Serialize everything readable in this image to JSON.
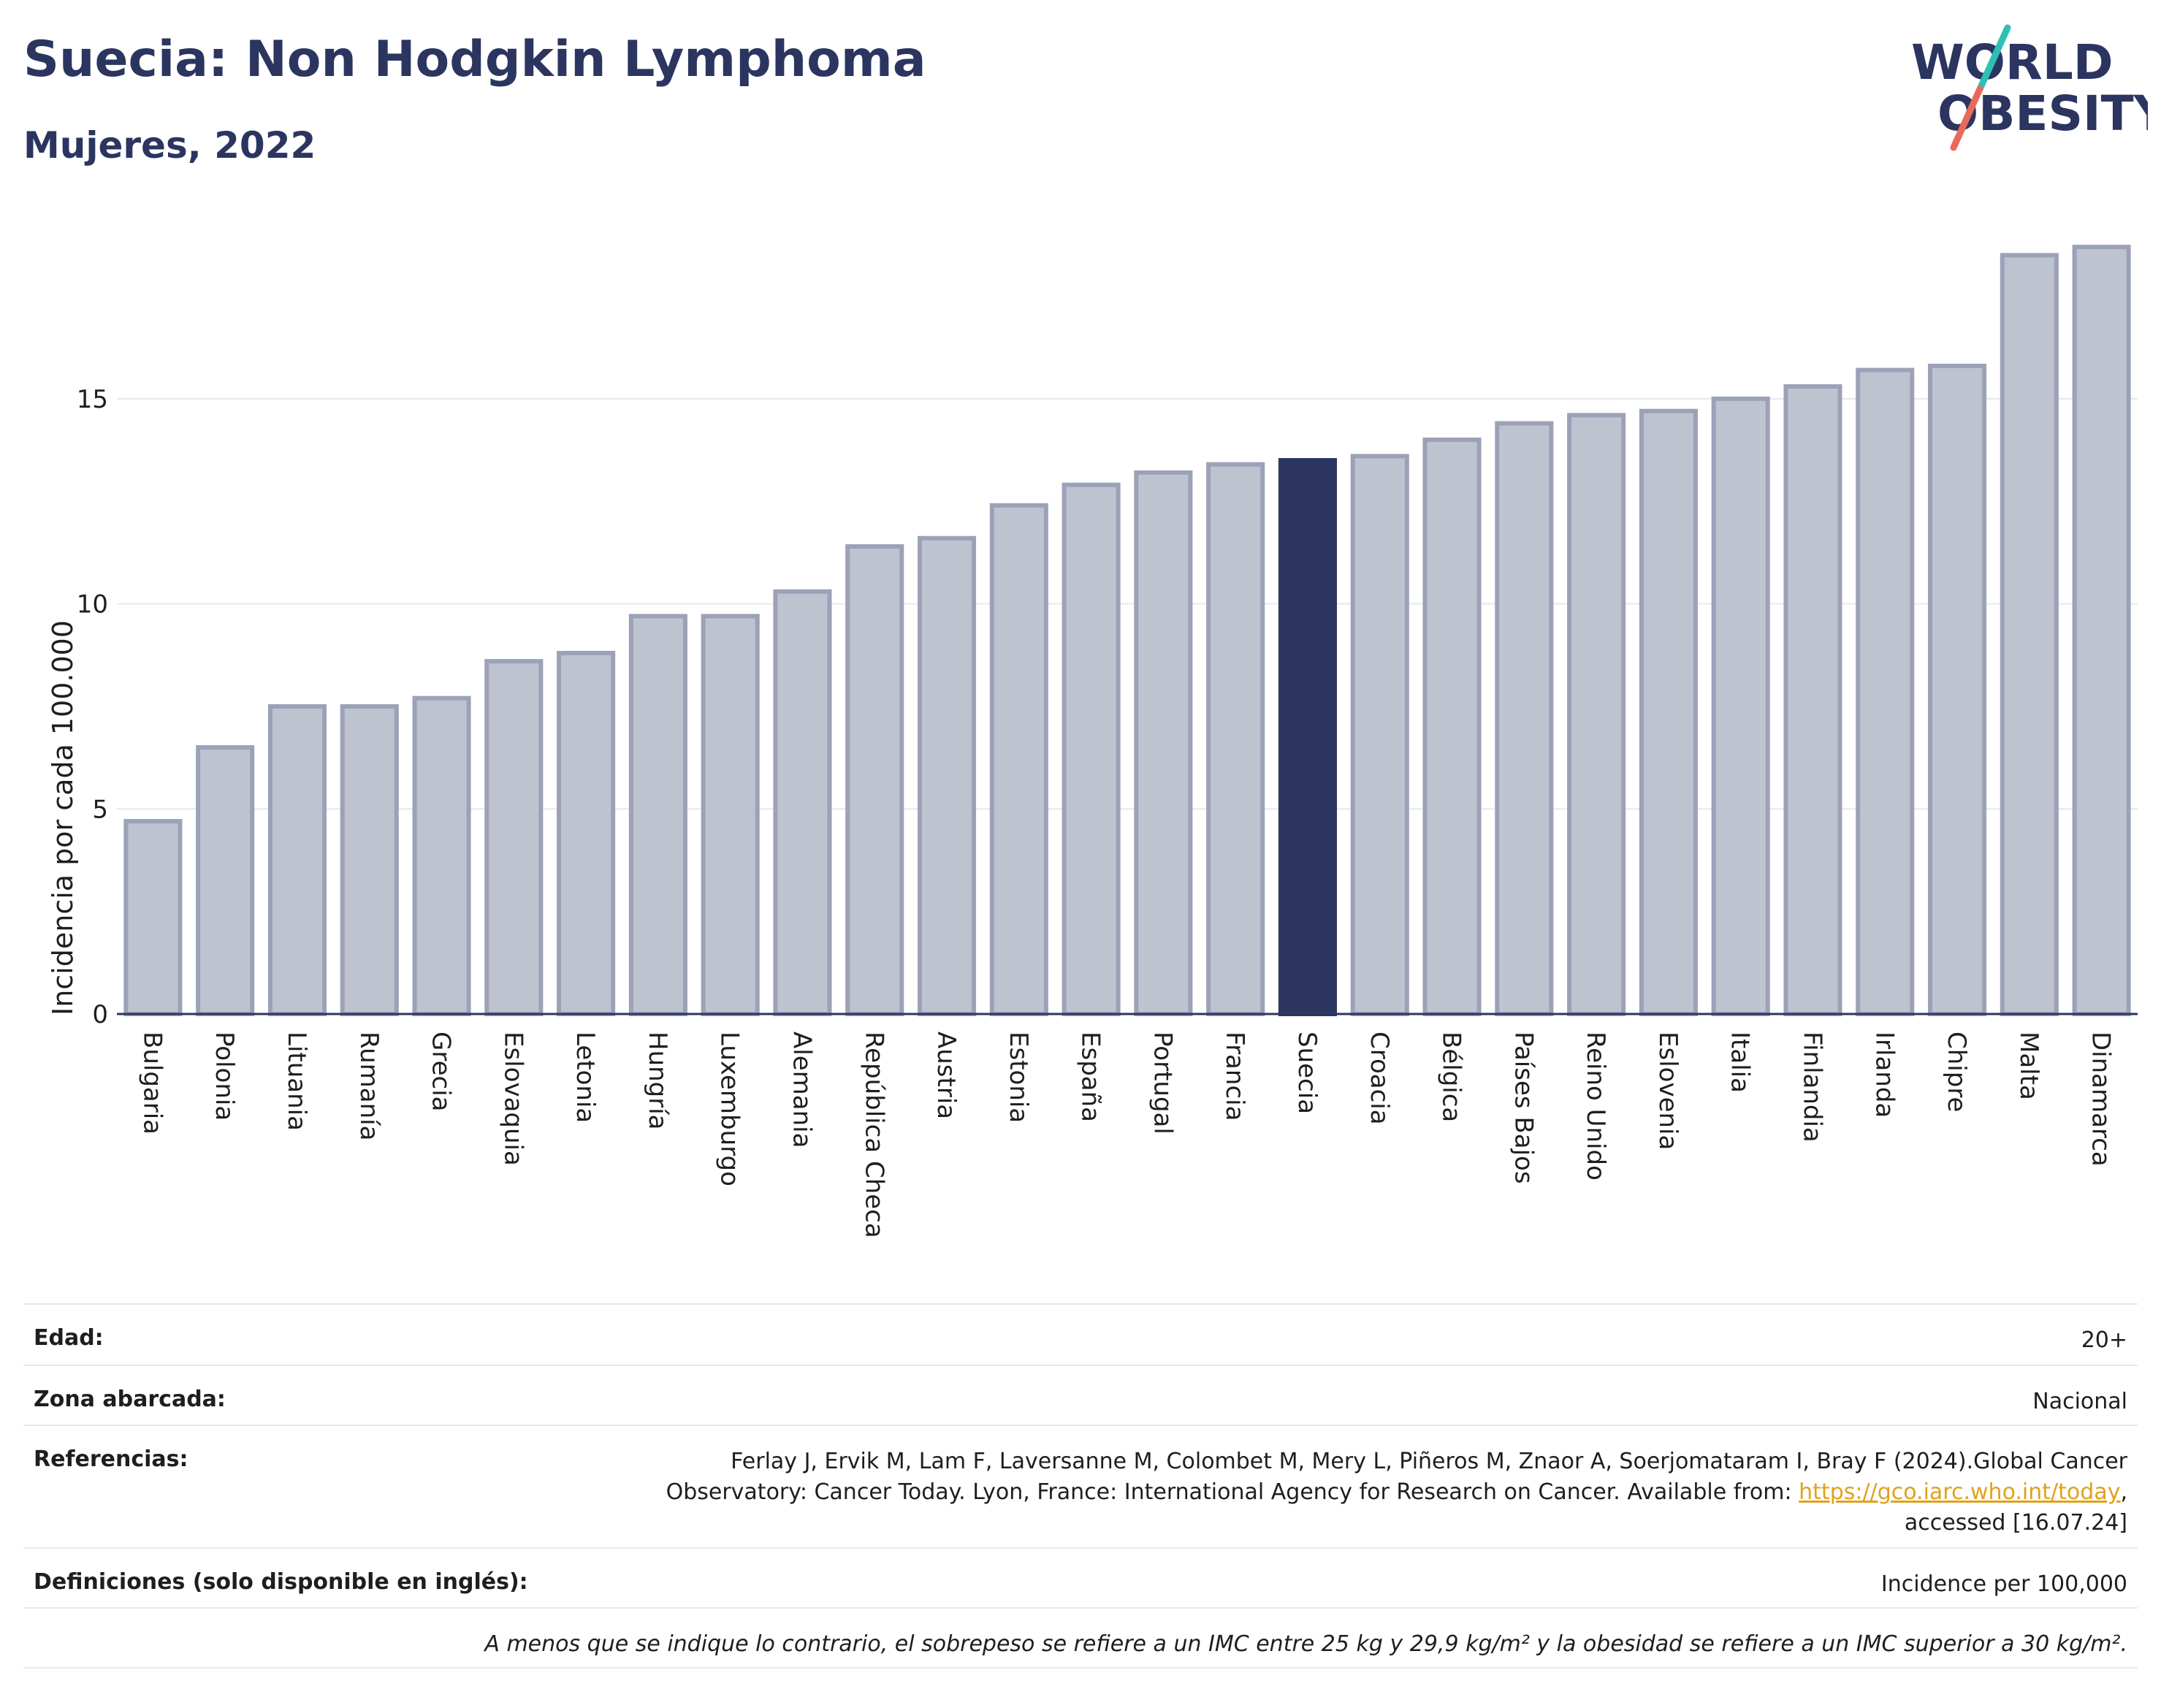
{
  "header": {
    "title": "Suecia: Non Hodgkin Lymphoma",
    "subtitle": "Mujeres, 2022"
  },
  "logo": {
    "line1": "WORLD",
    "line2": "OBESITY"
  },
  "colors": {
    "bar": "#bfc3d0",
    "bar_border": "#9ba2b8",
    "highlight": "#2b3560",
    "grid": "#e6e8ef",
    "axis": "#2b3560",
    "logo_text": "#2b3560",
    "logo_slash_top": "#2fbfb4",
    "logo_slash_bottom": "#e9695a",
    "link": "#e0a21c"
  },
  "chart_data": {
    "type": "bar",
    "categories": [
      "Bulgaria",
      "Polonia",
      "Lituania",
      "Rumanía",
      "Grecia",
      "Eslovaquia",
      "Letonia",
      "Hungría",
      "Luxemburgo",
      "Alemania",
      "República Checa",
      "Austria",
      "Estonia",
      "España",
      "Portugal",
      "Francia",
      "Suecia",
      "Croacia",
      "Bélgica",
      "Países Bajos",
      "Reino Unido",
      "Eslovenia",
      "Italia",
      "Finlandia",
      "Irlanda",
      "Chipre",
      "Malta",
      "Dinamarca"
    ],
    "values": [
      4.7,
      6.5,
      7.5,
      7.5,
      7.7,
      8.6,
      8.8,
      9.7,
      9.7,
      10.3,
      11.4,
      11.6,
      12.4,
      12.9,
      13.2,
      13.4,
      13.5,
      13.6,
      14.0,
      14.4,
      14.6,
      14.7,
      15.0,
      15.3,
      15.7,
      15.8,
      18.5,
      18.7
    ],
    "highlight": "Suecia",
    "ylabel": "Incidencia por cada 100.000",
    "xlabel": "",
    "yticks": [
      0,
      5,
      10,
      15
    ],
    "ylim": [
      0,
      19.2
    ],
    "grid": true
  },
  "meta": {
    "edad": {
      "label": "Edad:",
      "value": "20+"
    },
    "zona": {
      "label": "Zona abarcada:",
      "value": "Nacional"
    },
    "refs": {
      "label": "Referencias:",
      "line1": "Ferlay J, Ervik M, Lam F, Laversanne M, Colombet M, Mery L, Piñeros M, Znaor A, Soerjomataram I, Bray F (2024).Global Cancer",
      "line2_pre": "Observatory: Cancer Today. Lyon, France: International Agency for Research on Cancer. Available from: ",
      "link": "https://gco.iarc.who.int/today",
      "line2_post": ",",
      "line3": "accessed [16.07.24]"
    },
    "defs": {
      "label": "Definiciones (solo disponible en inglés):",
      "value": "Incidence per 100,000"
    },
    "note": "A menos que se indique lo contrario, el sobrepeso se refiere a un IMC entre 25 kg y 29,9 kg/m² y la obesidad se refiere a un IMC superior a 30 kg/m²."
  }
}
